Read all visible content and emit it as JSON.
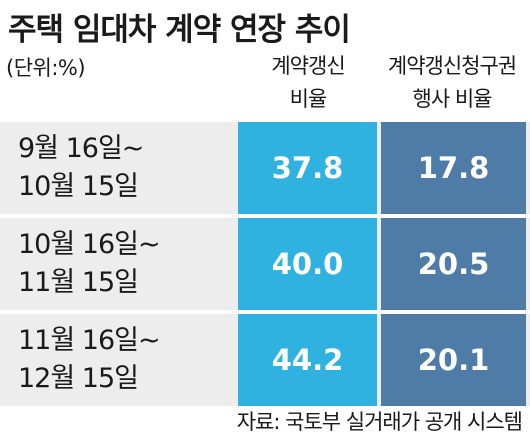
{
  "title": "주택 임대차 계약 연장 추이",
  "unit": "(단위:%)",
  "source": "자료: 국토부 실거래가 공개 시스템",
  "colors": {
    "renewal_cell": "#2fb2e0",
    "claim_cell": "#4f7ca6",
    "row_background": "#ededee"
  },
  "chart_data": {
    "type": "table",
    "title": "주택 임대차 계약 연장 추이",
    "unit": "(단위:%)",
    "columns": [
      {
        "line1": "계약갱신",
        "line2": "비율"
      },
      {
        "line1": "계약갱신청구권",
        "line2": "행사 비율"
      }
    ],
    "rows": [
      {
        "period_line1": "9월 16일~",
        "period_line2": "10월 15일",
        "values": [
          "37.8",
          "17.8"
        ]
      },
      {
        "period_line1": "10월 16일~",
        "period_line2": "11월 15일",
        "values": [
          "40.0",
          "20.5"
        ]
      },
      {
        "period_line1": "11월 16일~",
        "period_line2": "12월 15일",
        "values": [
          "44.2",
          "20.1"
        ]
      }
    ],
    "series": [
      {
        "name": "계약갱신 비율",
        "values": [
          37.8,
          40.0,
          44.2
        ]
      },
      {
        "name": "계약갱신청구권 행사 비율",
        "values": [
          17.8,
          20.5,
          20.1
        ]
      }
    ],
    "source": "자료: 국토부 실거래가 공개 시스템"
  }
}
